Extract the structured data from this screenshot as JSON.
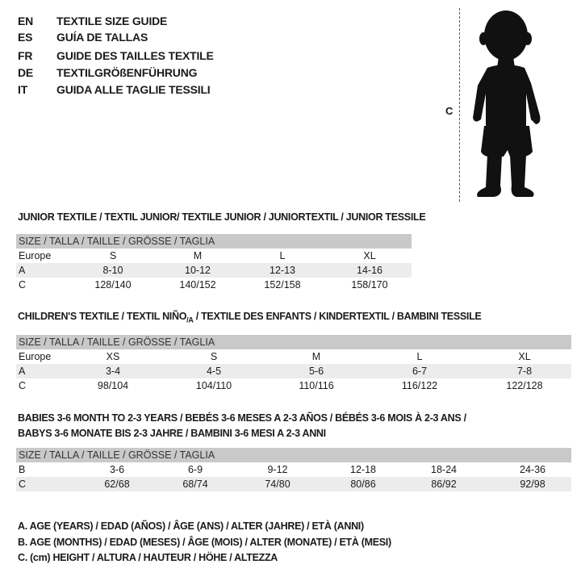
{
  "languages": [
    {
      "code": "EN",
      "title": "TEXTILE SIZE GUIDE"
    },
    {
      "code": "ES",
      "title": "GUÍA DE TALLAS"
    },
    {
      "code": "FR",
      "title": "GUIDE DES TAILLES TEXTILE"
    },
    {
      "code": "DE",
      "title": "TEXTILGRÖßENFÜHRUNG"
    },
    {
      "code": "IT",
      "title": "GUIDA ALLE TAGLIE TESSILI"
    }
  ],
  "figure": {
    "measure_label": "C"
  },
  "junior": {
    "title": "JUNIOR TEXTILE / TEXTIL JUNIOR/ TEXTILE JUNIOR / JUNIORTEXTIL / JUNIOR TESSILE",
    "header": "SIZE / TALLA / TAILLE / GRÖSSE / TAGLIA",
    "rows": [
      {
        "label": "Europe",
        "values": [
          "S",
          "M",
          "L",
          "XL"
        ]
      },
      {
        "label": "A",
        "values": [
          "8-10",
          "10-12",
          "12-13",
          "14-16"
        ]
      },
      {
        "label": "C",
        "values": [
          "128/140",
          "140/152",
          "152/158",
          "158/170"
        ]
      }
    ]
  },
  "children": {
    "title_a": "CHILDREN'S TEXTILE / TEXTIL NIÑO",
    "title_sub": "/A",
    "title_b": " / TEXTILE DES ENFANTS / KINDERTEXTIL / BAMBINI TESSILE",
    "header": "SIZE / TALLA / TAILLE / GRÖSSE / TAGLIA",
    "rows": [
      {
        "label": "Europe",
        "values": [
          "XS",
          "S",
          "M",
          "L",
          "XL"
        ]
      },
      {
        "label": "A",
        "values": [
          "3-4",
          "4-5",
          "5-6",
          "6-7",
          "7-8"
        ]
      },
      {
        "label": "C",
        "values": [
          "98/104",
          "104/110",
          "110/116",
          "116/122",
          "122/128"
        ]
      }
    ]
  },
  "babies": {
    "title_line1": "BABIES 3-6 MONTH TO 2-3 YEARS / BEBÉS 3-6 MESES A 2-3 AÑOS / BÉBÉS 3-6 MOIS À 2-3 ANS /",
    "title_line2": "BABYS 3-6 MONATE BIS 2-3 JAHRE / BAMBINI 3-6 MESI A 2-3 ANNI",
    "header": "SIZE / TALLA / TAILLE / GRÖSSE / TAGLIA",
    "rows": [
      {
        "label": "B",
        "values": [
          "3-6",
          "6-9",
          "9-12",
          "12-18",
          "18-24",
          "24-36"
        ]
      },
      {
        "label": "C",
        "values": [
          "62/68",
          "68/74",
          "74/80",
          "80/86",
          "86/92",
          "92/98"
        ]
      }
    ]
  },
  "legend": [
    "A. AGE (YEARS) / EDAD (AÑOS) / ÂGE (ANS) / ALTER (JAHRE) / ETÀ (ANNI)",
    "B. AGE (MONTHS) / EDAD (MESES) / ÂGE (MOIS) / ALTER (MONATE) / ETÀ (MESI)",
    "C. (cm) HEIGHT / ALTURA / HAUTEUR / HÖHE / ALTEZZA"
  ]
}
